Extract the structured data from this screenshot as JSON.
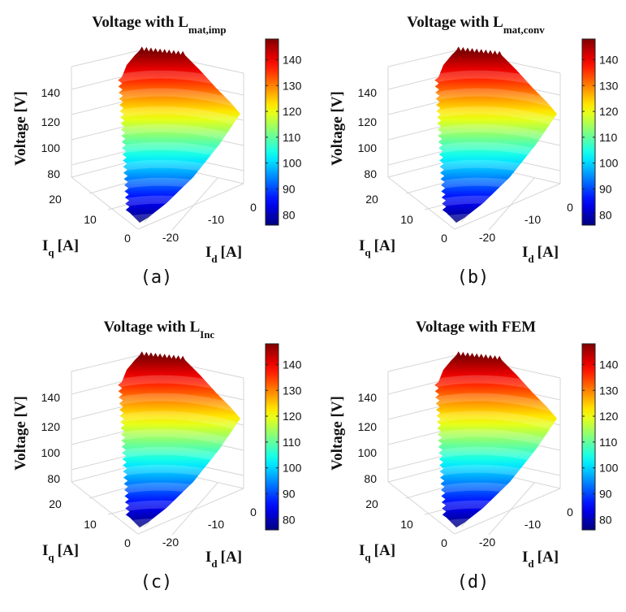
{
  "chart_data": [
    {
      "type": "surface",
      "caption": "(a)",
      "title": {
        "main": "Voltage with L",
        "sub": "mat,imp"
      },
      "zlabel": "Voltage [V]",
      "xlabel": {
        "main": "I",
        "sub": "q",
        "unit": "[A]"
      },
      "ylabel": {
        "main": "I",
        "sub": "d",
        "unit": "[A]"
      },
      "z_ticks": [
        "80",
        "100",
        "120",
        "140"
      ],
      "iq_ticks": [
        "20",
        "10",
        "0"
      ],
      "id_ticks": [
        "0",
        "-10",
        "-20"
      ],
      "colorbar": {
        "range": [
          76,
          148
        ],
        "ticks": [
          "80",
          "90",
          "100",
          "110",
          "120",
          "130",
          "140"
        ]
      },
      "voltage_range": [
        76,
        148
      ],
      "colormap": "jet",
      "grid": true
    },
    {
      "type": "surface",
      "caption": "(b)",
      "title": {
        "main": "Voltage with L",
        "sub": "mat,conv"
      },
      "zlabel": "Voltage [V]",
      "xlabel": {
        "main": "I",
        "sub": "q",
        "unit": "[A]"
      },
      "ylabel": {
        "main": "I",
        "sub": "d",
        "unit": "[A]"
      },
      "z_ticks": [
        "80",
        "100",
        "120",
        "140"
      ],
      "iq_ticks": [
        "20",
        "10",
        "0"
      ],
      "id_ticks": [
        "0",
        "-10",
        "-20"
      ],
      "colorbar": {
        "range": [
          76,
          148
        ],
        "ticks": [
          "80",
          "90",
          "100",
          "110",
          "120",
          "130",
          "140"
        ]
      },
      "voltage_range": [
        76,
        148
      ],
      "colormap": "jet",
      "grid": true
    },
    {
      "type": "surface",
      "caption": "(c)",
      "title": {
        "main": "Voltage with L",
        "sub": "Inc"
      },
      "zlabel": "Voltage [V]",
      "xlabel": {
        "main": "I",
        "sub": "q",
        "unit": "[A]"
      },
      "ylabel": {
        "main": "I",
        "sub": "d",
        "unit": "[A]"
      },
      "z_ticks": [
        "80",
        "100",
        "120",
        "140"
      ],
      "iq_ticks": [
        "20",
        "10",
        "0"
      ],
      "id_ticks": [
        "0",
        "-10",
        "-20"
      ],
      "colorbar": {
        "range": [
          76,
          148
        ],
        "ticks": [
          "80",
          "90",
          "100",
          "110",
          "120",
          "130",
          "140"
        ]
      },
      "voltage_range": [
        76,
        148
      ],
      "colormap": "jet",
      "grid": true
    },
    {
      "type": "surface",
      "caption": "(d)",
      "title": {
        "main": "Voltage with FEM",
        "sub": ""
      },
      "zlabel": "Voltage [V]",
      "xlabel": {
        "main": "I",
        "sub": "q",
        "unit": "[A]"
      },
      "ylabel": {
        "main": "I",
        "sub": "d",
        "unit": "[A]"
      },
      "z_ticks": [
        "80",
        "100",
        "120",
        "140"
      ],
      "iq_ticks": [
        "20",
        "10",
        "0"
      ],
      "id_ticks": [
        "0",
        "-10",
        "-20"
      ],
      "colorbar": {
        "range": [
          76,
          148
        ],
        "ticks": [
          "80",
          "90",
          "100",
          "110",
          "120",
          "130",
          "140"
        ]
      },
      "voltage_range": [
        76,
        148
      ],
      "colormap": "jet",
      "grid": true
    }
  ]
}
